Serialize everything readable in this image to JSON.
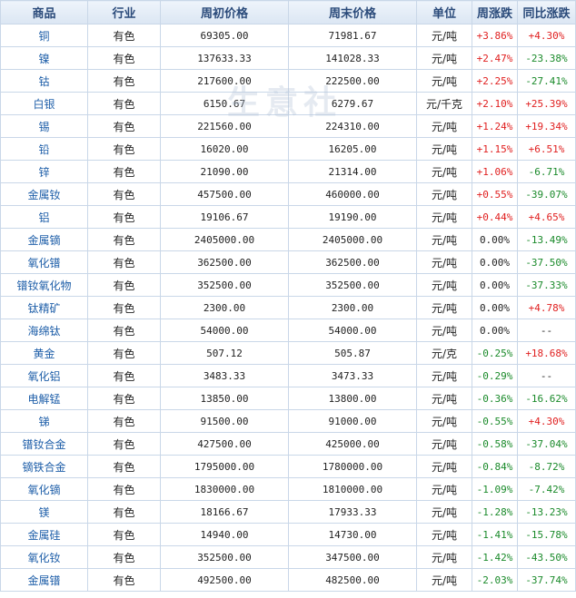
{
  "watermark": "生意社",
  "headers": [
    "商品",
    "行业",
    "周初价格",
    "周末价格",
    "单位",
    "周涨跌",
    "同比涨跌"
  ],
  "rows": [
    [
      "铜",
      "有色",
      "69305.00",
      "71981.67",
      "元/吨",
      "+3.86%",
      "+4.30%"
    ],
    [
      "镍",
      "有色",
      "137633.33",
      "141028.33",
      "元/吨",
      "+2.47%",
      "-23.38%"
    ],
    [
      "钴",
      "有色",
      "217600.00",
      "222500.00",
      "元/吨",
      "+2.25%",
      "-27.41%"
    ],
    [
      "白银",
      "有色",
      "6150.67",
      "6279.67",
      "元/千克",
      "+2.10%",
      "+25.39%"
    ],
    [
      "锡",
      "有色",
      "221560.00",
      "224310.00",
      "元/吨",
      "+1.24%",
      "+19.34%"
    ],
    [
      "铅",
      "有色",
      "16020.00",
      "16205.00",
      "元/吨",
      "+1.15%",
      "+6.51%"
    ],
    [
      "锌",
      "有色",
      "21090.00",
      "21314.00",
      "元/吨",
      "+1.06%",
      "-6.71%"
    ],
    [
      "金属钕",
      "有色",
      "457500.00",
      "460000.00",
      "元/吨",
      "+0.55%",
      "-39.07%"
    ],
    [
      "铝",
      "有色",
      "19106.67",
      "19190.00",
      "元/吨",
      "+0.44%",
      "+4.65%"
    ],
    [
      "金属镝",
      "有色",
      "2405000.00",
      "2405000.00",
      "元/吨",
      "0.00%",
      "-13.49%"
    ],
    [
      "氧化镨",
      "有色",
      "362500.00",
      "362500.00",
      "元/吨",
      "0.00%",
      "-37.50%"
    ],
    [
      "镨钕氧化物",
      "有色",
      "352500.00",
      "352500.00",
      "元/吨",
      "0.00%",
      "-37.33%"
    ],
    [
      "钛精矿",
      "有色",
      "2300.00",
      "2300.00",
      "元/吨",
      "0.00%",
      "+4.78%"
    ],
    [
      "海绵钛",
      "有色",
      "54000.00",
      "54000.00",
      "元/吨",
      "0.00%",
      "--"
    ],
    [
      "黄金",
      "有色",
      "507.12",
      "505.87",
      "元/克",
      "-0.25%",
      "+18.68%"
    ],
    [
      "氧化铝",
      "有色",
      "3483.33",
      "3473.33",
      "元/吨",
      "-0.29%",
      "--"
    ],
    [
      "电解锰",
      "有色",
      "13850.00",
      "13800.00",
      "元/吨",
      "-0.36%",
      "-16.62%"
    ],
    [
      "锑",
      "有色",
      "91500.00",
      "91000.00",
      "元/吨",
      "-0.55%",
      "+4.30%"
    ],
    [
      "镨钕合金",
      "有色",
      "427500.00",
      "425000.00",
      "元/吨",
      "-0.58%",
      "-37.04%"
    ],
    [
      "镝铁合金",
      "有色",
      "1795000.00",
      "1780000.00",
      "元/吨",
      "-0.84%",
      "-8.72%"
    ],
    [
      "氧化镝",
      "有色",
      "1830000.00",
      "1810000.00",
      "元/吨",
      "-1.09%",
      "-7.42%"
    ],
    [
      "镁",
      "有色",
      "18166.67",
      "17933.33",
      "元/吨",
      "-1.28%",
      "-13.23%"
    ],
    [
      "金属硅",
      "有色",
      "14940.00",
      "14730.00",
      "元/吨",
      "-1.41%",
      "-15.78%"
    ],
    [
      "氧化钕",
      "有色",
      "352500.00",
      "347500.00",
      "元/吨",
      "-1.42%",
      "-43.50%"
    ],
    [
      "金属镨",
      "有色",
      "492500.00",
      "482500.00",
      "元/吨",
      "-2.03%",
      "-37.74%"
    ]
  ]
}
